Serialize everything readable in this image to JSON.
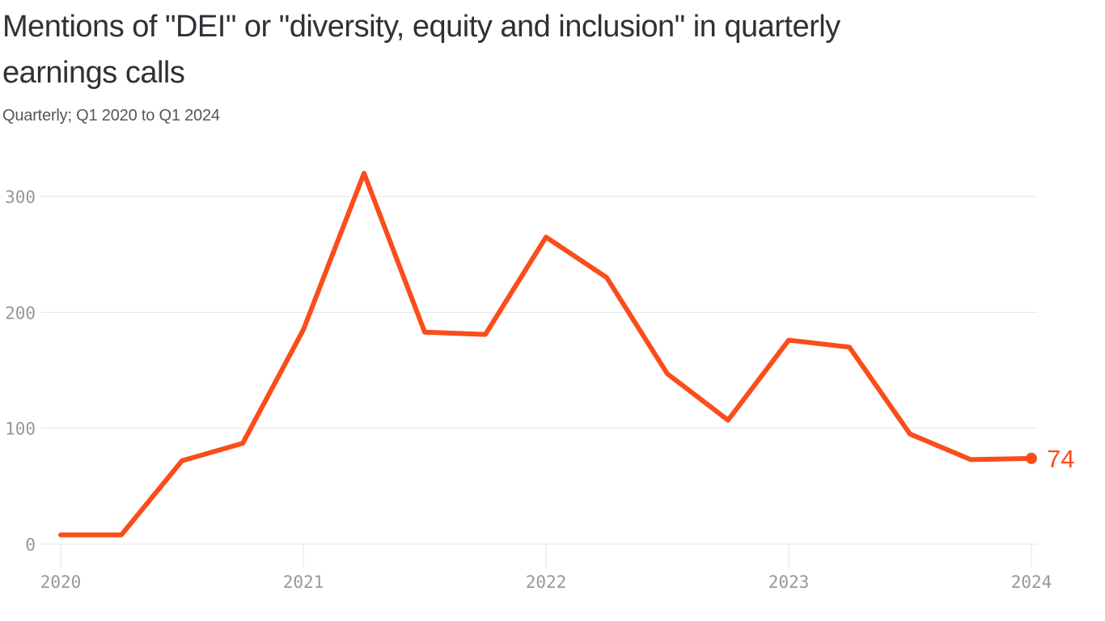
{
  "header": {
    "title_line1": "Mentions of \"DEI\" or \"diversity, equity and inclusion\" in quarterly",
    "title_line2": "earnings calls",
    "subtitle": "Quarterly; Q1 2020 to Q1 2024"
  },
  "chart_data": {
    "type": "line",
    "title": "Mentions of \"DEI\" or \"diversity, equity and inclusion\" in quarterly earnings calls",
    "subtitle": "Quarterly; Q1 2020 to Q1 2024",
    "categories": [
      "Q1 2020",
      "Q2 2020",
      "Q3 2020",
      "Q4 2020",
      "Q1 2021",
      "Q2 2021",
      "Q3 2021",
      "Q4 2021",
      "Q1 2022",
      "Q2 2022",
      "Q3 2022",
      "Q4 2022",
      "Q1 2023",
      "Q2 2023",
      "Q3 2023",
      "Q4 2023",
      "Q1 2024"
    ],
    "series": [
      {
        "name": "DEI mentions",
        "values": [
          8,
          8,
          72,
          87,
          185,
          320,
          183,
          181,
          265,
          230,
          147,
          107,
          176,
          170,
          95,
          73,
          74
        ]
      }
    ],
    "end_point_label": "74",
    "x_axis": {
      "tick_labels": [
        "2020",
        "2021",
        "2022",
        "2023",
        "2024"
      ],
      "tick_category_indices": [
        0,
        4,
        8,
        12,
        16
      ]
    },
    "y_axis": {
      "ticks": [
        0,
        100,
        200,
        300
      ],
      "range": [
        0,
        330
      ]
    },
    "grid": "horizontal",
    "legend": "none",
    "colors": {
      "line": "#fa4d1b",
      "grid": "#e4e4e4",
      "axis_labels": "#95989c",
      "title": "#2f3136",
      "subtitle": "#55575b",
      "background": "#ffffff"
    }
  }
}
